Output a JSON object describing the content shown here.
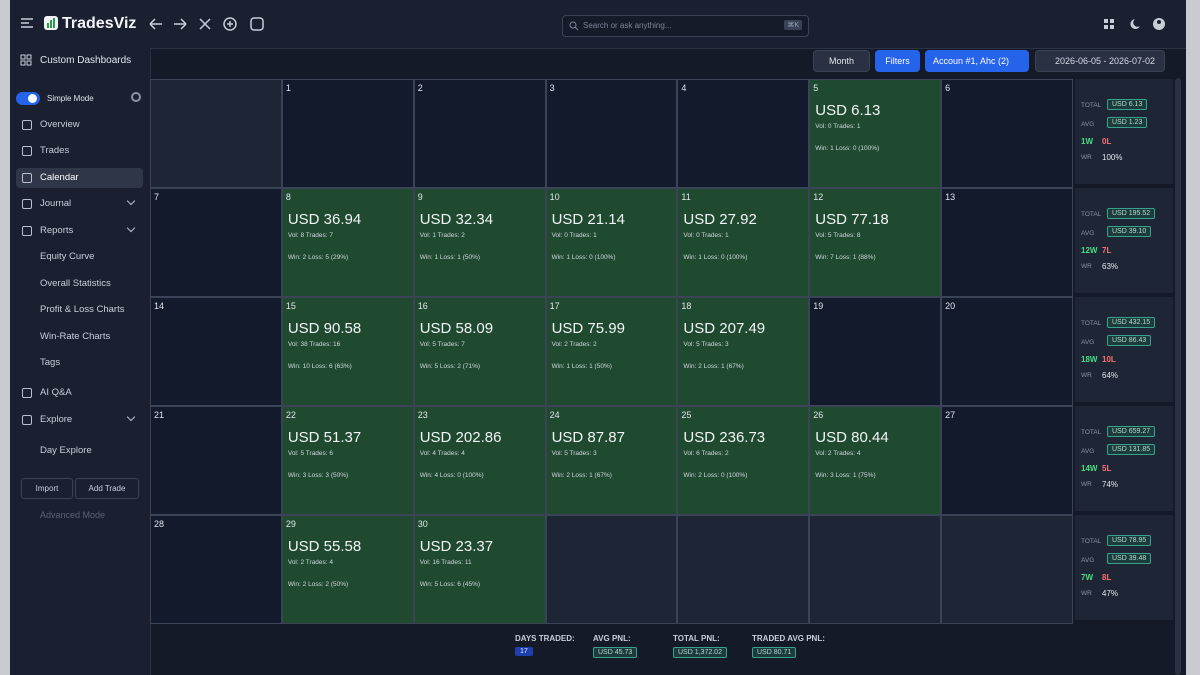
{
  "header": {
    "brand": "TradesViz",
    "search": "Search or ask anything...",
    "shortcut": "⌘K"
  },
  "toolbar": {
    "dashboards": "Custom Dashboards",
    "view": "Month",
    "filters": "Filters",
    "account": "Accoun #1, Ahc (2)",
    "date_range": "2026-06-05 - 2026-07-02"
  },
  "sidebar": {
    "mode": "Simple Mode",
    "nav": [
      "Overview",
      "Trades",
      "Calendar",
      "Journal",
      "Reports",
      "Equity Curve",
      "Overall Statistics",
      "Profit & Loss Charts",
      "Win-Rate Charts",
      "Tags",
      "AI Q&A",
      "Explore",
      "Day Explore"
    ],
    "import": "Import",
    "add_trade": "Add Trade",
    "advanced": "Advanced Mode"
  },
  "summary_labels": {
    "total": "TOTAL",
    "avg": "AVG",
    "wr": "WR"
  },
  "calendar": {
    "weeks": [
      {
        "days": [
          null,
          {
            "day": 1
          },
          {
            "day": 2
          },
          {
            "day": 3
          },
          {
            "day": 4
          },
          {
            "day": 5,
            "pnl": "USD 6.13",
            "stats": "Vol: 0 Trades: 1",
            "result": "Win: 1 Loss: 0 (100%)"
          },
          {
            "day": 6
          }
        ],
        "summary": {
          "total": "USD 6.13",
          "avg": "USD 1.23",
          "wins": "1W",
          "losses": "0L",
          "wr": "100%"
        }
      },
      {
        "days": [
          {
            "day": 7
          },
          {
            "day": 8,
            "pnl": "USD 36.94",
            "stats": "Vol: 8 Trades: 7",
            "result": "Win: 2 Loss: 5 (29%)"
          },
          {
            "day": 9,
            "pnl": "USD 32.34",
            "stats": "Vol: 1 Trades: 2",
            "result": "Win: 1 Loss: 1 (50%)"
          },
          {
            "day": 10,
            "pnl": "USD 21.14",
            "stats": "Vol: 0 Trades: 1",
            "result": "Win: 1 Loss: 0 (100%)"
          },
          {
            "day": 11,
            "pnl": "USD 27.92",
            "stats": "Vol: 0 Trades: 1",
            "result": "Win: 1 Loss: 0 (100%)"
          },
          {
            "day": 12,
            "pnl": "USD 77.18",
            "stats": "Vol: 5 Trades: 8",
            "result": "Win: 7 Loss: 1 (88%)"
          },
          {
            "day": 13
          }
        ],
        "summary": {
          "total": "USD 195.52",
          "avg": "USD 39.10",
          "wins": "12W",
          "losses": "7L",
          "wr": "63%"
        }
      },
      {
        "days": [
          {
            "day": 14
          },
          {
            "day": 15,
            "pnl": "USD 90.58",
            "stats": "Vol: 38 Trades: 16",
            "result": "Win: 10 Loss: 6 (63%)"
          },
          {
            "day": 16,
            "pnl": "USD 58.09",
            "stats": "Vol: 5 Trades: 7",
            "result": "Win: 5 Loss: 2 (71%)"
          },
          {
            "day": 17,
            "pnl": "USD 75.99",
            "stats": "Vol: 2 Trades: 2",
            "result": "Win: 1 Loss: 1 (50%)"
          },
          {
            "day": 18,
            "pnl": "USD 207.49",
            "stats": "Vol: 5 Trades: 3",
            "result": "Win: 2 Loss: 1 (67%)"
          },
          {
            "day": 19
          },
          {
            "day": 20
          }
        ],
        "summary": {
          "total": "USD 432.15",
          "avg": "USD 86.43",
          "wins": "18W",
          "losses": "10L",
          "wr": "64%"
        }
      },
      {
        "days": [
          {
            "day": 21
          },
          {
            "day": 22,
            "pnl": "USD 51.37",
            "stats": "Vol: 5 Trades: 6",
            "result": "Win: 3 Loss: 3 (50%)"
          },
          {
            "day": 23,
            "pnl": "USD 202.86",
            "stats": "Vol: 4 Trades: 4",
            "result": "Win: 4 Loss: 0 (100%)"
          },
          {
            "day": 24,
            "pnl": "USD 87.87",
            "stats": "Vol: 5 Trades: 3",
            "result": "Win: 2 Loss: 1 (67%)"
          },
          {
            "day": 25,
            "pnl": "USD 236.73",
            "stats": "Vol: 6 Trades: 2",
            "result": "Win: 2 Loss: 0 (100%)"
          },
          {
            "day": 26,
            "pnl": "USD 80.44",
            "stats": "Vol: 2 Trades: 4",
            "result": "Win: 3 Loss: 1 (75%)"
          },
          {
            "day": 27
          }
        ],
        "summary": {
          "total": "USD 659.27",
          "avg": "USD 131.85",
          "wins": "14W",
          "losses": "5L",
          "wr": "74%"
        }
      },
      {
        "days": [
          {
            "day": 28
          },
          {
            "day": 29,
            "pnl": "USD 55.58",
            "stats": "Vol: 2 Trades: 4",
            "result": "Win: 2 Loss: 2 (50%)"
          },
          {
            "day": 30,
            "pnl": "USD 23.37",
            "stats": "Vol: 16 Trades: 11",
            "result": "Win: 5 Loss: 6 (45%)"
          },
          null,
          null,
          null,
          null
        ],
        "summary": {
          "total": "USD 78.95",
          "avg": "USD 39.48",
          "wins": "7W",
          "losses": "8L",
          "wr": "47%"
        }
      }
    ]
  },
  "footer": {
    "days_traded_label": "DAYS TRADED:",
    "days_traded": 17,
    "avg_pnl_label": "AVG PNL:",
    "avg_pnl": "USD 45.73",
    "total_pnl_label": "TOTAL PNL:",
    "total_pnl": "USD 1,372.02",
    "traded_avg_label": "TRADED AVG PNL:",
    "traded_avg": "USD 80.71"
  }
}
